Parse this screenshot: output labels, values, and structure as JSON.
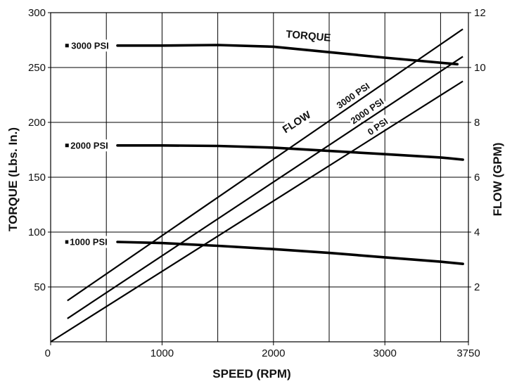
{
  "chart_data": {
    "type": "line",
    "title": "",
    "xlabel": "SPEED (RPM)",
    "ylabel_left": "TORQUE (Lbs. In.)",
    "ylabel_right": "FLOW (GPM)",
    "xlim": [
      0,
      3750
    ],
    "ylim_left": [
      0,
      300
    ],
    "ylim_right": [
      0,
      12
    ],
    "x_ticks": [
      0,
      1000,
      2000,
      3000,
      3750
    ],
    "x_grid": [
      500,
      1000,
      1500,
      2000,
      2500,
      3000,
      3500
    ],
    "y_left_ticks": [
      50,
      100,
      150,
      200,
      250,
      300
    ],
    "y_right_ticks": [
      2,
      4,
      6,
      8,
      10,
      12
    ],
    "grid": true,
    "torque_series": [
      {
        "name": "3000 PSI",
        "axis": "left",
        "x": [
          600,
          1000,
          1500,
          2000,
          2500,
          3000,
          3650
        ],
        "y": [
          270,
          270,
          270.5,
          269,
          264,
          259,
          253
        ]
      },
      {
        "name": "2000 PSI",
        "axis": "left",
        "x": [
          600,
          1000,
          1500,
          2000,
          2500,
          3000,
          3500,
          3700
        ],
        "y": [
          179,
          179,
          178.5,
          177,
          174,
          171,
          168,
          166
        ]
      },
      {
        "name": "1000 PSI",
        "axis": "left",
        "x": [
          600,
          1000,
          1500,
          2000,
          2500,
          3000,
          3500,
          3700
        ],
        "y": [
          91,
          90,
          87.5,
          84.5,
          81,
          77,
          73,
          71
        ]
      }
    ],
    "flow_series": [
      {
        "name": "3000 PSI",
        "axis": "right",
        "x": [
          150,
          3700
        ],
        "y": [
          1.5,
          11.4
        ]
      },
      {
        "name": "2000 PSI",
        "axis": "right",
        "x": [
          150,
          3700
        ],
        "y": [
          0.85,
          10.4
        ]
      },
      {
        "name": "0 PSI",
        "axis": "right",
        "x": [
          0,
          3700
        ],
        "y": [
          0,
          9.5
        ]
      }
    ],
    "annotations": {
      "torque_label": "TORQUE",
      "flow_label": "FLOW",
      "torque_3000": "3000 PSI",
      "torque_2000": "2000 PSI",
      "torque_1000": "1000 PSI",
      "flow_3000": "3000 PSI",
      "flow_2000": "2000 PSI",
      "flow_0": "0 PSI"
    }
  }
}
